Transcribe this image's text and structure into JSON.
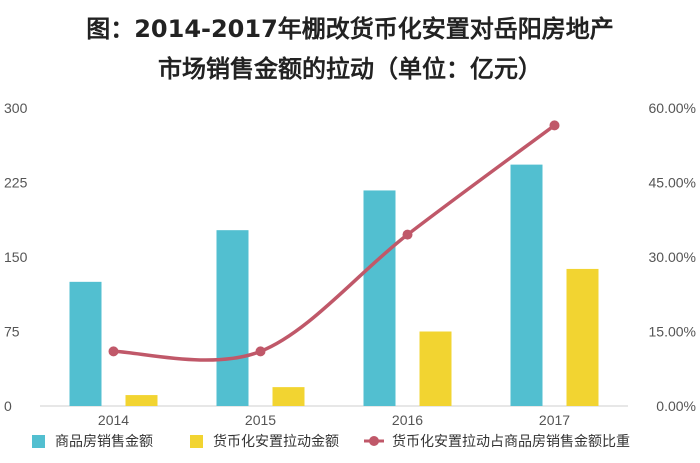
{
  "chart_data": {
    "type": "bar",
    "title_lines": [
      "图：2014-2017年棚改货币化安置对岳阳房地产",
      "市场销售金额的拉动（单位：亿元）"
    ],
    "categories": [
      "2014",
      "2015",
      "2016",
      "2017"
    ],
    "series": [
      {
        "name": "商品房销售金额",
        "type": "bar",
        "axis": "left",
        "color": "#52bfd0",
        "values": [
          125,
          177,
          217,
          243
        ]
      },
      {
        "name": "货币化安置拉动金额",
        "type": "bar",
        "axis": "left",
        "color": "#f2d431",
        "values": [
          11,
          19,
          75,
          138
        ]
      },
      {
        "name": "货币化安置拉动占商品房销售金额比重",
        "type": "line",
        "axis": "right",
        "color": "#c05869",
        "values": [
          0.11,
          0.11,
          0.345,
          0.565
        ]
      }
    ],
    "y_left": {
      "ylim": [
        0,
        300
      ],
      "ticks": [
        0,
        75,
        150,
        225,
        300
      ],
      "tick_labels": [
        "0",
        "75",
        "150",
        "225",
        "300"
      ]
    },
    "y_right": {
      "ylim": [
        0,
        0.6
      ],
      "ticks": [
        0,
        0.15,
        0.3,
        0.45,
        0.6
      ],
      "tick_labels": [
        "0.00%",
        "15.00%",
        "30.00%",
        "45.00%",
        "60.00%"
      ]
    },
    "grid": false,
    "legend_position": "bottom"
  }
}
